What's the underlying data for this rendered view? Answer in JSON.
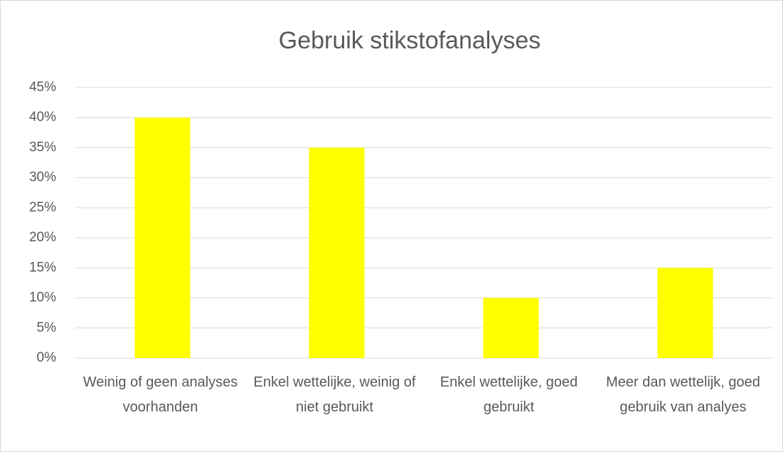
{
  "chart_data": {
    "type": "bar",
    "title": "Gebruik stikstofanalyses",
    "categories": [
      "Weinig of geen analyses voorhanden",
      "Enkel wettelijke, weinig of niet gebruikt",
      "Enkel wettelijke, goed gebruikt",
      "Meer dan wettelijk, goed gebruik van analyes"
    ],
    "values": [
      40,
      35,
      10,
      15
    ],
    "color": "#ffff00",
    "ylim": [
      0,
      45
    ],
    "yticks": [
      {
        "value": 0,
        "label": "0%"
      },
      {
        "value": 5,
        "label": "5%"
      },
      {
        "value": 10,
        "label": "10%"
      },
      {
        "value": 15,
        "label": "15%"
      },
      {
        "value": 20,
        "label": "20%"
      },
      {
        "value": 25,
        "label": "25%"
      },
      {
        "value": 30,
        "label": "30%"
      },
      {
        "value": 35,
        "label": "35%"
      },
      {
        "value": 40,
        "label": "40%"
      },
      {
        "value": 45,
        "label": "45%"
      }
    ],
    "grid": true
  }
}
